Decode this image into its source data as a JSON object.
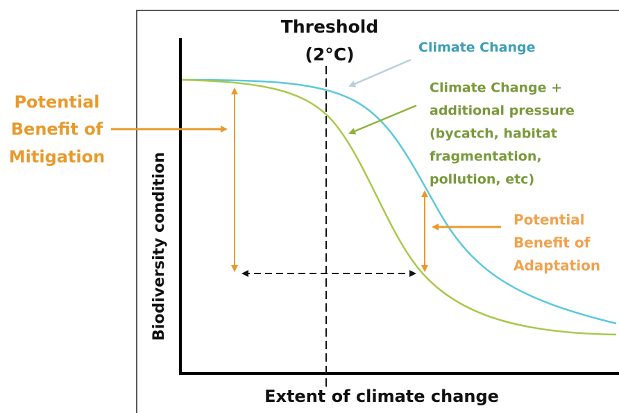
{
  "axes": {
    "x_label": "Extent of climate change",
    "y_label": "Biodiversity condition"
  },
  "threshold": {
    "label_lines": [
      "Threshold",
      "(2°C)"
    ]
  },
  "curves": [
    {
      "label_lines": [
        "Climate Change"
      ]
    },
    {
      "label_lines": [
        "Climate Change +",
        "additional pressure",
        "(bycatch, habitat",
        "fragmentation,",
        "pollution, etc)"
      ]
    }
  ],
  "annotations": {
    "mitigation": {
      "label_lines": [
        "Potential",
        "Benefit of",
        "Mitigation"
      ]
    },
    "adaptation": {
      "label_lines": [
        "Potential",
        "Benefit of",
        "Adaptation"
      ]
    }
  }
}
